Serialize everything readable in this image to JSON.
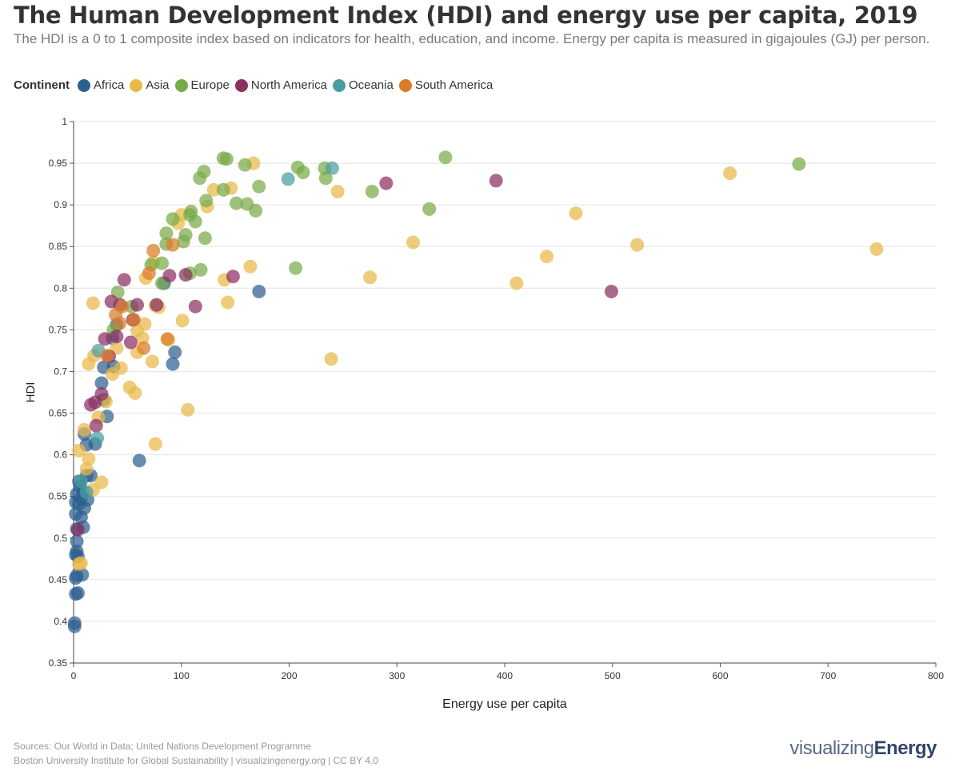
{
  "header": {
    "title": "The Human Development Index (HDI) and energy use per capita, 2019",
    "subtitle": "The HDI is a 0 to 1 composite index based on indicators for health, education, and income. Energy per capita is measured in gigajoules (GJ) per person."
  },
  "legend": {
    "title": "Continent",
    "items": [
      {
        "label": "Africa",
        "color": "#2d5f8f"
      },
      {
        "label": "Asia",
        "color": "#e9b948"
      },
      {
        "label": "Europe",
        "color": "#78ab4a"
      },
      {
        "label": "North America",
        "color": "#8a2f62"
      },
      {
        "label": "Oceania",
        "color": "#4a9e9f"
      },
      {
        "label": "South America",
        "color": "#d97b28"
      }
    ]
  },
  "footer": {
    "sources": "Sources: Our World in Data; United Nations Development Programme",
    "credit": "Boston University Institute for Global Sustainability | visualizingenergy.org | CC BY 4.0"
  },
  "brand": {
    "light": "visualizing",
    "strong": "Energy"
  },
  "chart_data": {
    "type": "scatter",
    "title": "The Human Development Index (HDI) and energy use per capita, 2019",
    "xlabel": "Energy use per capita",
    "ylabel": "HDI",
    "xlim": [
      0,
      800
    ],
    "ylim": [
      0.35,
      1
    ],
    "xticks": [
      0,
      100,
      200,
      300,
      400,
      500,
      600,
      700,
      800
    ],
    "yticks": [
      0.35,
      0.4,
      0.45,
      0.5,
      0.55,
      0.6,
      0.65,
      0.7,
      0.75,
      0.8,
      0.85,
      0.9,
      0.95,
      1
    ],
    "ytick_labels": [
      "0.35",
      "0.4",
      "0.45",
      "0.5",
      "0.55",
      "0.6",
      "0.65",
      "0.7",
      "0.75",
      "0.8",
      "0.85",
      "0.9",
      "0.95",
      "1"
    ],
    "grid": "horizontal",
    "legend_position": "top-left",
    "series": [
      {
        "name": "Africa",
        "color": "#2d5f8f",
        "points": [
          [
            1,
            0.394
          ],
          [
            1,
            0.398
          ],
          [
            2,
            0.433
          ],
          [
            4,
            0.434
          ],
          [
            2,
            0.452
          ],
          [
            3,
            0.455
          ],
          [
            8,
            0.456
          ],
          [
            2,
            0.48
          ],
          [
            3,
            0.484
          ],
          [
            4,
            0.478
          ],
          [
            3,
            0.496
          ],
          [
            3,
            0.511
          ],
          [
            9,
            0.513
          ],
          [
            2,
            0.529
          ],
          [
            7,
            0.525
          ],
          [
            10,
            0.536
          ],
          [
            5,
            0.541
          ],
          [
            2,
            0.543
          ],
          [
            7,
            0.548
          ],
          [
            3,
            0.553
          ],
          [
            13,
            0.546
          ],
          [
            9,
            0.555
          ],
          [
            6,
            0.562
          ],
          [
            5,
            0.568
          ],
          [
            12,
            0.575
          ],
          [
            16,
            0.575
          ],
          [
            12,
            0.612
          ],
          [
            20,
            0.613
          ],
          [
            10,
            0.625
          ],
          [
            28,
            0.666
          ],
          [
            31,
            0.646
          ],
          [
            26,
            0.686
          ],
          [
            28,
            0.705
          ],
          [
            37,
            0.706
          ],
          [
            36,
            0.74
          ],
          [
            40,
            0.756
          ],
          [
            61,
            0.593
          ],
          [
            92,
            0.709
          ],
          [
            94,
            0.723
          ],
          [
            84,
            0.806
          ],
          [
            172,
            0.796
          ]
        ]
      },
      {
        "name": "Asia",
        "color": "#e9b948",
        "points": [
          [
            5,
            0.469
          ],
          [
            7,
            0.47
          ],
          [
            5,
            0.605
          ],
          [
            10,
            0.63
          ],
          [
            14,
            0.595
          ],
          [
            12,
            0.583
          ],
          [
            18,
            0.558
          ],
          [
            26,
            0.567
          ],
          [
            14,
            0.709
          ],
          [
            19,
            0.719
          ],
          [
            23,
            0.645
          ],
          [
            30,
            0.664
          ],
          [
            36,
            0.697
          ],
          [
            44,
            0.704
          ],
          [
            40,
            0.728
          ],
          [
            57,
            0.674
          ],
          [
            52,
            0.681
          ],
          [
            59,
            0.723
          ],
          [
            59,
            0.749
          ],
          [
            64,
            0.74
          ],
          [
            66,
            0.757
          ],
          [
            76,
            0.613
          ],
          [
            73,
            0.712
          ],
          [
            76,
            0.779
          ],
          [
            79,
            0.777
          ],
          [
            67,
            0.812
          ],
          [
            74,
            0.831
          ],
          [
            88,
            0.738
          ],
          [
            101,
            0.761
          ],
          [
            106,
            0.654
          ],
          [
            97,
            0.878
          ],
          [
            100,
            0.888
          ],
          [
            124,
            0.898
          ],
          [
            130,
            0.918
          ],
          [
            140,
            0.81
          ],
          [
            143,
            0.783
          ],
          [
            146,
            0.92
          ],
          [
            164,
            0.826
          ],
          [
            167,
            0.95
          ],
          [
            239,
            0.715
          ],
          [
            245,
            0.916
          ],
          [
            275,
            0.813
          ],
          [
            315,
            0.855
          ],
          [
            411,
            0.806
          ],
          [
            439,
            0.838
          ],
          [
            466,
            0.89
          ],
          [
            523,
            0.852
          ],
          [
            609,
            0.938
          ],
          [
            745,
            0.847
          ],
          [
            18,
            0.782
          ]
        ]
      },
      {
        "name": "Europe",
        "color": "#78ab4a",
        "points": [
          [
            41,
            0.795
          ],
          [
            37,
            0.75
          ],
          [
            54,
            0.778
          ],
          [
            72,
            0.828
          ],
          [
            82,
            0.83
          ],
          [
            82,
            0.806
          ],
          [
            86,
            0.853
          ],
          [
            86,
            0.866
          ],
          [
            92,
            0.883
          ],
          [
            102,
            0.856
          ],
          [
            104,
            0.864
          ],
          [
            108,
            0.818
          ],
          [
            108,
            0.888
          ],
          [
            109,
            0.892
          ],
          [
            113,
            0.88
          ],
          [
            117,
            0.932
          ],
          [
            118,
            0.822
          ],
          [
            121,
            0.94
          ],
          [
            122,
            0.86
          ],
          [
            123,
            0.905
          ],
          [
            139,
            0.956
          ],
          [
            139,
            0.918
          ],
          [
            142,
            0.955
          ],
          [
            151,
            0.902
          ],
          [
            159,
            0.948
          ],
          [
            161,
            0.901
          ],
          [
            169,
            0.893
          ],
          [
            172,
            0.922
          ],
          [
            206,
            0.824
          ],
          [
            208,
            0.945
          ],
          [
            213,
            0.939
          ],
          [
            233,
            0.944
          ],
          [
            234,
            0.932
          ],
          [
            277,
            0.916
          ],
          [
            330,
            0.895
          ],
          [
            345,
            0.957
          ],
          [
            673,
            0.949
          ]
        ]
      },
      {
        "name": "North America",
        "color": "#8a2f62",
        "points": [
          [
            4,
            0.51
          ],
          [
            16,
            0.66
          ],
          [
            20,
            0.663
          ],
          [
            21,
            0.635
          ],
          [
            26,
            0.673
          ],
          [
            29,
            0.739
          ],
          [
            33,
            0.718
          ],
          [
            35,
            0.784
          ],
          [
            40,
            0.742
          ],
          [
            43,
            0.78
          ],
          [
            47,
            0.81
          ],
          [
            53,
            0.735
          ],
          [
            55,
            0.762
          ],
          [
            59,
            0.78
          ],
          [
            77,
            0.78
          ],
          [
            89,
            0.815
          ],
          [
            104,
            0.816
          ],
          [
            113,
            0.778
          ],
          [
            148,
            0.814
          ],
          [
            290,
            0.926
          ],
          [
            392,
            0.929
          ],
          [
            499,
            0.796
          ]
        ]
      },
      {
        "name": "Oceania",
        "color": "#4a9e9f",
        "points": [
          [
            7,
            0.568
          ],
          [
            12,
            0.555
          ],
          [
            22,
            0.62
          ],
          [
            23,
            0.725
          ],
          [
            199,
            0.931
          ],
          [
            240,
            0.944
          ]
        ]
      },
      {
        "name": "South America",
        "color": "#d97b28",
        "points": [
          [
            31,
            0.719
          ],
          [
            39,
            0.768
          ],
          [
            43,
            0.758
          ],
          [
            45,
            0.778
          ],
          [
            56,
            0.762
          ],
          [
            65,
            0.728
          ],
          [
            70,
            0.818
          ],
          [
            74,
            0.845
          ],
          [
            87,
            0.739
          ],
          [
            92,
            0.852
          ]
        ]
      }
    ]
  }
}
